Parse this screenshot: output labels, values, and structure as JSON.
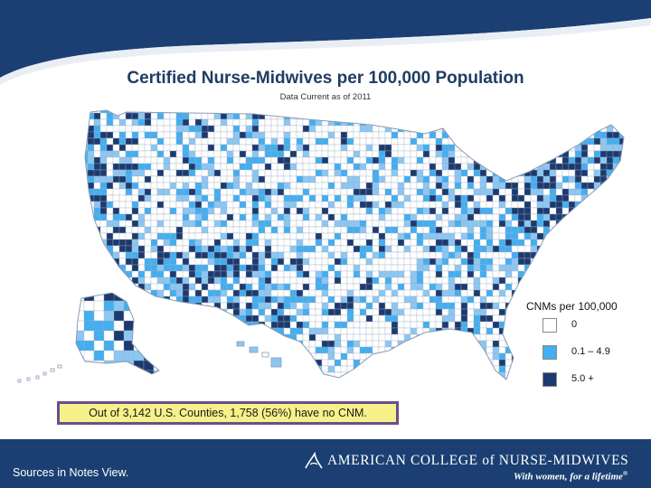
{
  "slide": {
    "title": "Certified Nurse-Midwives per 100,000 Population",
    "subtitle": "Data Current as of 2011"
  },
  "map": {
    "region": "United States counties",
    "legend": {
      "title": "CNMs per 100,000",
      "items": [
        {
          "label": "0",
          "color": "#ffffff"
        },
        {
          "label": "0.1 – 4.9",
          "color": "#43aef0"
        },
        {
          "label": "5.0 +",
          "color": "#1d3a6e"
        }
      ]
    }
  },
  "note": "Out of 3,142 U.S. Counties, 1,758 (56%) have no CNM.",
  "footer": {
    "sources": "Sources in Notes View.",
    "org_name": "AMERICAN COLLEGE of NURSE-MIDWIVES",
    "tagline": "With women, for a lifetime",
    "trademark": "®"
  },
  "colors": {
    "banner": "#1b3f72",
    "none": "#ffffff",
    "low": "#43aef0",
    "low_alt": "#8cc7f3",
    "high": "#1d3a6e",
    "note_fill": "#f6f18a",
    "note_border": "#6b4e8a"
  }
}
